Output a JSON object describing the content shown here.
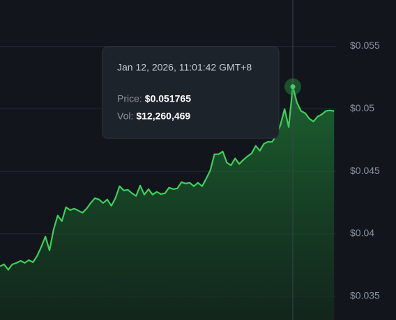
{
  "chart_data": {
    "type": "line",
    "series": [
      {
        "name": "Price",
        "color": "#3ecf5c",
        "values": [
          0.03739,
          0.03755,
          0.03711,
          0.03755,
          0.03767,
          0.03783,
          0.03767,
          0.03789,
          0.03772,
          0.03822,
          0.03895,
          0.03978,
          0.03867,
          0.04034,
          0.04146,
          0.04101,
          0.04212,
          0.0419,
          0.04201,
          0.04185,
          0.04168,
          0.04201,
          0.04246,
          0.04285,
          0.04274,
          0.04246,
          0.04274,
          0.04224,
          0.04285,
          0.0438,
          0.04346,
          0.04352,
          0.04324,
          0.04302,
          0.04385,
          0.04313,
          0.04357,
          0.04313,
          0.04335,
          0.04318,
          0.04324,
          0.04369,
          0.04357,
          0.04363,
          0.04413,
          0.04402,
          0.04408,
          0.0438,
          0.04408,
          0.0438,
          0.04441,
          0.04508,
          0.04636,
          0.04636,
          0.04658,
          0.04569,
          0.04547,
          0.04603,
          0.04558,
          0.04591,
          0.04619,
          0.04642,
          0.04703,
          0.04664,
          0.0472,
          0.04736,
          0.04736,
          0.04787,
          0.0487,
          0.04998,
          0.04853,
          0.051765,
          0.05049,
          0.04982,
          0.04965,
          0.0492,
          0.04898,
          0.04937,
          0.04954,
          0.04982,
          0.04987,
          0.04982
        ]
      }
    ],
    "ylim": [
      0.0331,
      0.0587
    ],
    "yticks": [
      {
        "value": 0.055,
        "label": "$0.055"
      },
      {
        "value": 0.05,
        "label": "$0.05"
      },
      {
        "value": 0.045,
        "label": "$0.045"
      },
      {
        "value": 0.04,
        "label": "$0.04"
      },
      {
        "value": 0.035,
        "label": "$0.035"
      }
    ],
    "grid": true,
    "tooltip": {
      "time": "Jan 12, 2026, 11:01:42 GMT+8",
      "price_label": "Price:",
      "price": "$0.051765",
      "vol_label": "Vol:",
      "vol": "$12,260,469"
    }
  }
}
